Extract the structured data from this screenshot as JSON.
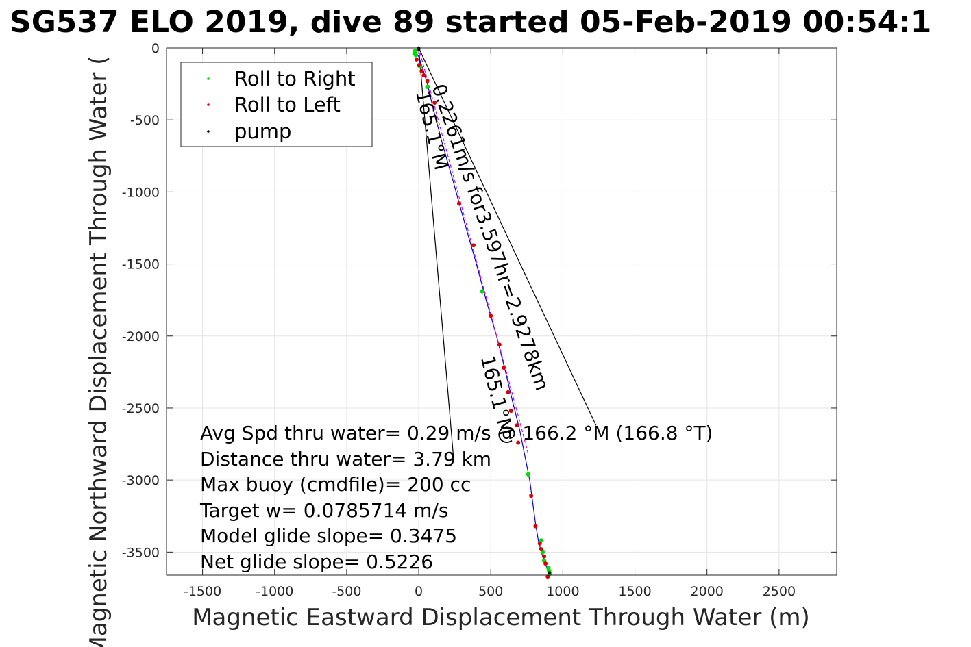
{
  "chart_data": {
    "type": "scatter",
    "title": "SG537 ELO 2019, dive 89 started 05-Feb-2019 00:54:1",
    "xlabel": "Magnetic Eastward Displacement Through Water (m)",
    "ylabel": "Magnetic Northward Displacement Through Water (",
    "xlim": [
      -1750,
      2900
    ],
    "ylim": [
      -3660,
      0
    ],
    "xticks": [
      -1500,
      -1000,
      -500,
      0,
      500,
      1000,
      1500,
      2000,
      2500
    ],
    "xtick_labels": [
      "-1500",
      "-1000",
      "-500",
      "0",
      "500",
      "1000",
      "1500",
      "2000",
      "2500"
    ],
    "yticks": [
      0,
      -500,
      -1000,
      -1500,
      -2000,
      -2500,
      -3000,
      -3500
    ],
    "ytick_labels": [
      "0",
      "-500",
      "-1000",
      "-1500",
      "-2000",
      "-2500",
      "-3000",
      "-3500"
    ],
    "grid": true,
    "legend_placement": "top-left",
    "legend": [
      {
        "label": "Roll to Right",
        "color": "#00dd00"
      },
      {
        "label": "Roll to Left",
        "color": "#dd0000"
      },
      {
        "label": "pump",
        "color": "#000000"
      }
    ],
    "track": {
      "color": "#0000ee",
      "x": [
        -20,
        0,
        30,
        60,
        100,
        160,
        240,
        320,
        400,
        470,
        540,
        600,
        650,
        700,
        740,
        770,
        790,
        810,
        830,
        850,
        870,
        890,
        905
      ],
      "y": [
        -30,
        -60,
        -150,
        -250,
        -420,
        -650,
        -930,
        -1220,
        -1500,
        -1760,
        -2000,
        -2240,
        -2450,
        -2650,
        -2850,
        -3000,
        -3150,
        -3300,
        -3420,
        -3500,
        -3560,
        -3610,
        -3640
      ]
    },
    "depth_average_curve": {
      "color": "#dd00dd",
      "x": [
        0,
        100,
        200,
        300,
        400,
        500,
        600,
        700,
        760
      ],
      "y": [
        0,
        -370,
        -740,
        -1110,
        -1480,
        -1850,
        -2220,
        -2590,
        -2820
      ]
    },
    "roll_right_points": {
      "x": [
        -30,
        -25,
        -20,
        10,
        60,
        440,
        760,
        850,
        860,
        870,
        900,
        905,
        910
      ],
      "y": [
        -40,
        -20,
        -50,
        -130,
        -270,
        -1690,
        -2960,
        -3420,
        -3500,
        -3560,
        -3610,
        -3630,
        -3650
      ]
    },
    "roll_left_points": {
      "x": [
        -15,
        0,
        20,
        35,
        60,
        110,
        280,
        380,
        500,
        560,
        590,
        620,
        640,
        680,
        690,
        780,
        810,
        840,
        850,
        870,
        880,
        895
      ],
      "y": [
        -80,
        -120,
        -160,
        -190,
        -230,
        -380,
        -1080,
        -1370,
        -1860,
        -2060,
        -2220,
        -2390,
        -2520,
        -2620,
        -2740,
        -3110,
        -3320,
        -3440,
        -3480,
        -3530,
        -3580,
        -3670
      ]
    },
    "pump_points": {
      "x": [
        0,
        0,
        905
      ],
      "y": [
        0,
        -10,
        -3645
      ]
    },
    "guide_lines": [
      {
        "x": [
          0,
          240
        ],
        "y": [
          0,
          -2830
        ]
      },
      {
        "x": [
          0,
          1230
        ],
        "y": [
          0,
          -2620
        ]
      }
    ],
    "rotated_labels": [
      {
        "text": "0.2261m/s for3.597hr=2.9278km",
        "x": 90,
        "y": -270,
        "angle": -71
      },
      {
        "text": "165.1°M",
        "x": -20,
        "y": -310,
        "angle": -76
      },
      {
        "text": "165.1°M",
        "x": 430,
        "y": -2150,
        "angle": -76
      }
    ],
    "annotations": [
      "Avg Spd thru water=  0.29 m/s @ 166.2 °M (166.8 °T)",
      "Distance thru water=  3.79 km",
      "Max buoy (cmdfile)= 200 cc",
      "Target w= 0.0785714 m/s",
      "Model glide slope= 0.3475",
      "Net glide slope= 0.5226"
    ]
  }
}
